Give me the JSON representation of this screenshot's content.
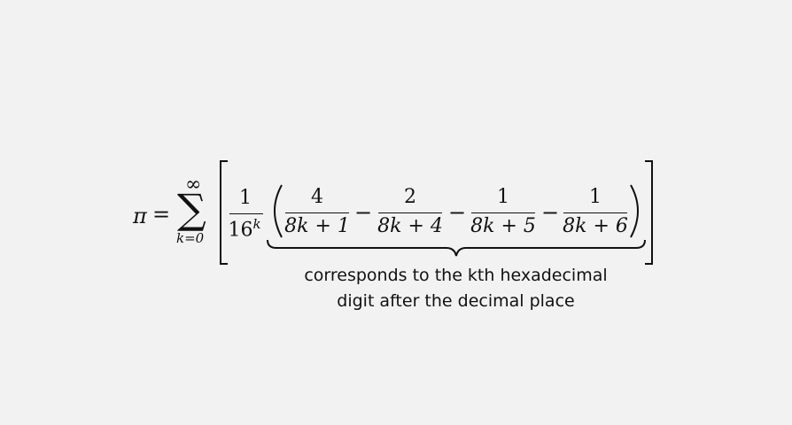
{
  "formula": {
    "lhs": "π",
    "equals": "=",
    "sum_symbol": "∑",
    "sum_upper": "∞",
    "sum_lower": "k=0",
    "prefactor_num": "1",
    "prefactor_den_base": "16",
    "prefactor_den_exp": "k",
    "terms": [
      {
        "num": "4",
        "den": "8k + 1"
      },
      {
        "num": "2",
        "den": "8k + 4"
      },
      {
        "num": "1",
        "den": "8k + 5"
      },
      {
        "num": "1",
        "den": "8k + 6"
      }
    ],
    "minus": "−"
  },
  "annotation": {
    "line1": "corresponds to the kth hexadecimal",
    "line2": "digit after the decimal place"
  }
}
